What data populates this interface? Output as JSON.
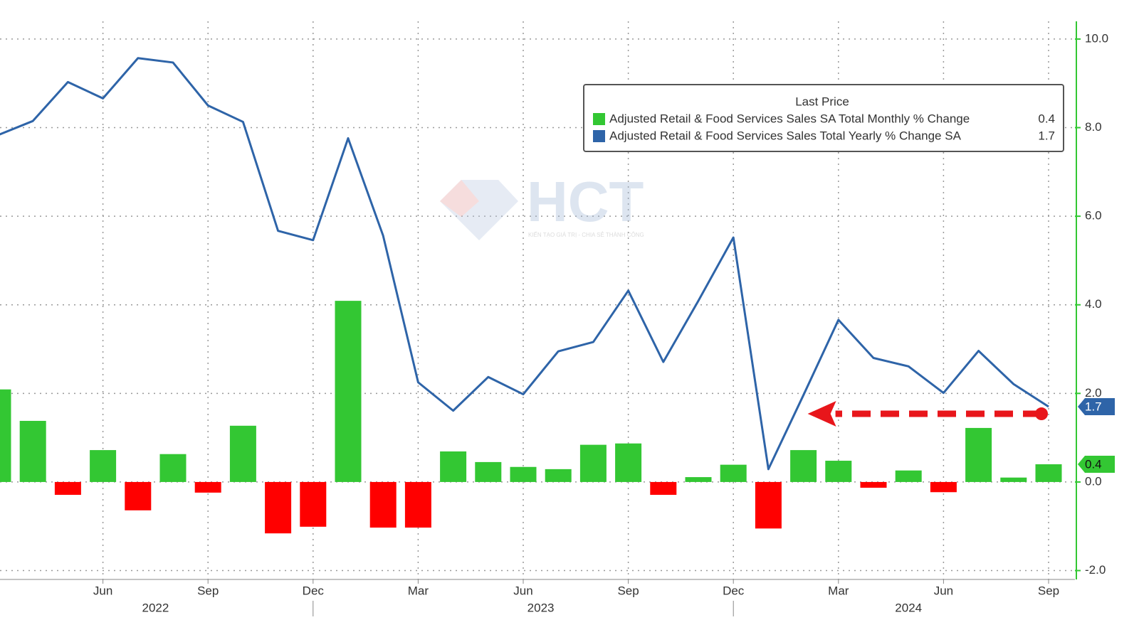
{
  "chart_data": {
    "type": "bar_line",
    "legend_title": "Last Price",
    "categories": [
      null,
      null,
      null,
      "Jun",
      null,
      null,
      "Sep",
      null,
      null,
      "Dec",
      null,
      null,
      "Mar",
      null,
      null,
      "Jun",
      null,
      null,
      "Sep",
      null,
      null,
      "Dec",
      null,
      null,
      "Mar",
      null,
      null,
      "Jun",
      null,
      null,
      "Sep"
    ],
    "years": [
      "2022",
      "2023",
      "2024"
    ],
    "series": [
      {
        "name": "Adjusted Retail & Food Services Sales SA Total Monthly % Change",
        "type": "bar",
        "color": "#33c733",
        "negative_color": "#ff0000",
        "values": [
          2.09,
          1.38,
          -0.29,
          0.72,
          -0.64,
          0.63,
          -0.24,
          1.27,
          -1.16,
          -1.01,
          4.09,
          -1.03,
          -1.03,
          0.69,
          0.45,
          0.34,
          0.29,
          0.84,
          0.87,
          -0.29,
          0.11,
          0.39,
          -1.05,
          0.72,
          0.48,
          -0.13,
          0.26,
          -0.23,
          1.22,
          0.1,
          0.4
        ]
      },
      {
        "name": "Adjusted Retail & Food Services Sales Total Yearly % Change SA",
        "type": "line",
        "color": "#2e64a8",
        "values": [
          7.83,
          8.15,
          9.03,
          8.66,
          9.57,
          9.47,
          8.5,
          8.13,
          5.67,
          5.46,
          7.76,
          5.56,
          2.25,
          1.61,
          2.37,
          1.98,
          2.95,
          3.16,
          4.32,
          2.71,
          4.09,
          5.52,
          0.29,
          1.96,
          3.66,
          2.8,
          2.61,
          2.01,
          2.96,
          2.21,
          1.7
        ]
      }
    ],
    "ylim": [
      -2.2,
      10.4
    ],
    "yticks": [
      {
        "value": -2,
        "label": "-2.0"
      },
      {
        "value": 0,
        "label": "0.0"
      },
      {
        "value": 2,
        "label": "2.0"
      },
      {
        "value": 4,
        "label": "4.0"
      },
      {
        "value": 6,
        "label": "6.0"
      },
      {
        "value": 8,
        "label": "8.0"
      },
      {
        "value": 10,
        "label": "10.0"
      }
    ],
    "grid": true,
    "legend_position": "top-right",
    "watermark": {
      "title": "HCT",
      "subtitle": "KIẾN TẠO GIÁ TRỊ - CHIA SẺ THÀNH CÔNG"
    }
  }
}
